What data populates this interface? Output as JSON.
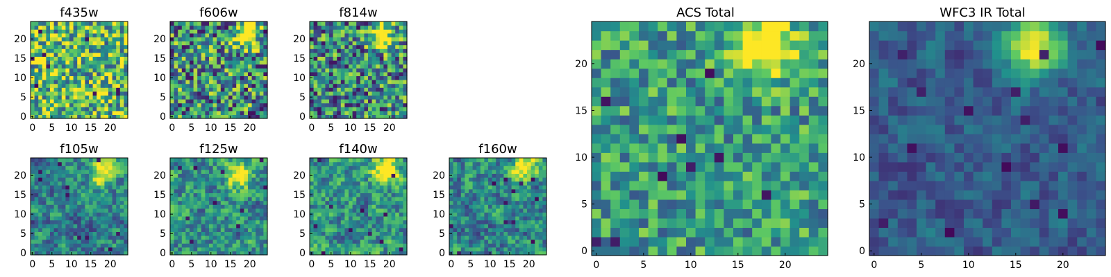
{
  "figure": {
    "background": "#ffffff"
  },
  "colormap": {
    "name": "viridis",
    "stops": [
      "#440154",
      "#3b528b",
      "#21918c",
      "#5ec962",
      "#fde725"
    ]
  },
  "chart_data": [
    {
      "type": "heatmap",
      "title": "f435w",
      "size": 25,
      "xticks": [
        0,
        5,
        10,
        15,
        20
      ],
      "yticks": [
        0,
        5,
        10,
        15,
        20
      ],
      "hotspot": null,
      "mean": 0.68,
      "spread": 0.42,
      "smooth": 0,
      "lows": 9
    },
    {
      "type": "heatmap",
      "title": "f606w",
      "size": 25,
      "xticks": [
        0,
        5,
        10,
        15,
        20
      ],
      "yticks": [
        0,
        5,
        10,
        15,
        20
      ],
      "hotspot": [
        19,
        21
      ],
      "mean": 0.5,
      "spread": 0.45,
      "smooth": 0,
      "lows": 12
    },
    {
      "type": "heatmap",
      "title": "f814w",
      "size": 25,
      "xticks": [
        0,
        5,
        10,
        15,
        20
      ],
      "yticks": [
        0,
        5,
        10,
        15,
        20
      ],
      "hotspot": [
        18,
        21
      ],
      "mean": 0.48,
      "spread": 0.42,
      "smooth": 0,
      "lows": 12
    },
    {
      "type": "heatmap",
      "title": "f105w",
      "size": 25,
      "xticks": [
        0,
        5,
        10,
        15,
        20
      ],
      "yticks": [
        0,
        5,
        10,
        15,
        20
      ],
      "hotspot": [
        18,
        21
      ],
      "mean": 0.45,
      "spread": 0.38,
      "smooth": 1,
      "lows": 10
    },
    {
      "type": "heatmap",
      "title": "f125w",
      "size": 25,
      "xticks": [
        0,
        5,
        10,
        15,
        20
      ],
      "yticks": [
        0,
        5,
        10,
        15,
        20
      ],
      "hotspot": [
        17,
        20
      ],
      "mean": 0.5,
      "spread": 0.42,
      "smooth": 1,
      "lows": 11
    },
    {
      "type": "heatmap",
      "title": "f140w",
      "size": 25,
      "xticks": [
        0,
        5,
        10,
        15,
        20
      ],
      "yticks": [
        0,
        5,
        10,
        15,
        20
      ],
      "hotspot": [
        19,
        21
      ],
      "mean": 0.52,
      "spread": 0.42,
      "smooth": 1,
      "lows": 11
    },
    {
      "type": "heatmap",
      "title": "f160w",
      "size": 25,
      "xticks": [
        0,
        5,
        10,
        15,
        20
      ],
      "yticks": [
        0,
        5,
        10,
        15,
        20
      ],
      "hotspot": [
        19,
        22
      ],
      "mean": 0.45,
      "spread": 0.4,
      "smooth": 1,
      "lows": 12
    },
    {
      "type": "heatmap",
      "title": "ACS Total",
      "size": 25,
      "xticks": [
        0,
        5,
        10,
        15,
        20
      ],
      "yticks": [
        0,
        5,
        10,
        15,
        20
      ],
      "hotspot": [
        18,
        22
      ],
      "mean": 0.55,
      "spread": 0.28,
      "smooth": 0,
      "lows": 9
    },
    {
      "type": "heatmap",
      "title": "WFC3 IR Total",
      "size": 25,
      "xticks": [
        0,
        5,
        10,
        15,
        20
      ],
      "yticks": [
        0,
        5,
        10,
        15,
        20
      ],
      "hotspot": [
        17,
        22
      ],
      "mean": 0.3,
      "spread": 0.2,
      "smooth": 1,
      "lows": 14
    }
  ]
}
